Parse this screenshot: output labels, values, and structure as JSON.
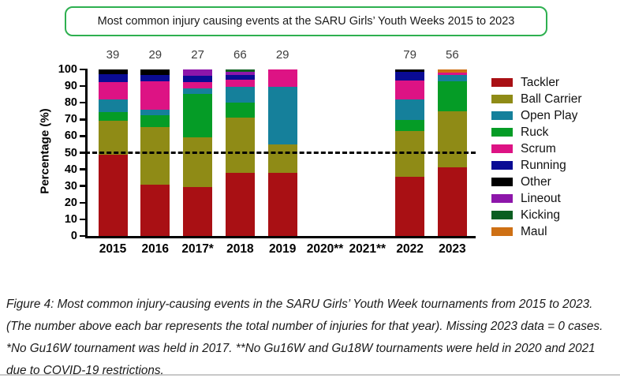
{
  "title_box": {
    "border_color": "#2EB050"
  },
  "caption": "Figure 4: Most common injury-causing events in the SARU Girls’ Youth Week tournaments from 2015 to 2023. (The number above each bar represents the total number of injuries for that year). Missing 2023 data = 0 cases. *No Gu16W tournament was held in 2017. **No Gu16W and Gu18W tournaments were held in 2020 and 2021 due to COVID-19 restrictions.",
  "chart_data": {
    "type": "bar",
    "stacked": true,
    "title": "Most common injury causing events at the SARU Girls’ Youth Weeks 2015 to 2023",
    "xlabel": "",
    "ylabel": "Percentage (%)",
    "ylim": [
      0,
      100
    ],
    "yticks": [
      0,
      10,
      20,
      30,
      40,
      50,
      60,
      70,
      80,
      90,
      100
    ],
    "reference_line_y": 50,
    "grid": false,
    "legend_position": "right",
    "categories": [
      "2015",
      "2016",
      "2017*",
      "2018",
      "2019",
      "2020**",
      "2021**",
      "2022",
      "2023"
    ],
    "bar_totals": [
      39,
      29,
      27,
      66,
      29,
      null,
      null,
      79,
      56
    ],
    "stack_order": [
      "Tackler",
      "Ball Carrier",
      "Ruck",
      "Open Play",
      "Scrum",
      "Running",
      "Other",
      "Lineout",
      "Kicking",
      "Maul"
    ],
    "series": [
      {
        "name": "Tackler",
        "color": "#A91014",
        "values": [
          48.7,
          31.0,
          29.6,
          37.9,
          37.9,
          0,
          0,
          35.4,
          41.1
        ]
      },
      {
        "name": "Ball Carrier",
        "color": "#8F8B16",
        "values": [
          20.5,
          34.5,
          29.6,
          33.3,
          17.2,
          0,
          0,
          27.8,
          33.9
        ]
      },
      {
        "name": "Open Play",
        "color": "#15809B",
        "values": [
          7.7,
          3.4,
          3.7,
          9.1,
          34.5,
          0,
          0,
          12.7,
          3.6
        ]
      },
      {
        "name": "Ruck",
        "color": "#059C26",
        "values": [
          5.1,
          6.9,
          25.9,
          9.1,
          0,
          0,
          0,
          6.3,
          17.9
        ]
      },
      {
        "name": "Scrum",
        "color": "#DD1384",
        "values": [
          10.3,
          17.2,
          3.7,
          4.5,
          10.4,
          0,
          0,
          11.4,
          1.8
        ]
      },
      {
        "name": "Running",
        "color": "#0A0B94",
        "values": [
          5.1,
          3.5,
          3.7,
          3.0,
          0,
          0,
          0,
          5.1,
          0
        ]
      },
      {
        "name": "Other",
        "color": "#000000",
        "values": [
          2.6,
          3.5,
          0,
          0,
          0,
          0,
          0,
          1.3,
          0
        ]
      },
      {
        "name": "Lineout",
        "color": "#8D16AA",
        "values": [
          0,
          0,
          3.8,
          1.5,
          0,
          0,
          0,
          0,
          0
        ]
      },
      {
        "name": "Kicking",
        "color": "#0B5E21",
        "values": [
          0,
          0,
          0,
          1.6,
          0,
          0,
          0,
          0,
          0
        ]
      },
      {
        "name": "Maul",
        "color": "#CE7014",
        "values": [
          0,
          0,
          0,
          0,
          0,
          0,
          0,
          0,
          1.7
        ]
      }
    ]
  }
}
